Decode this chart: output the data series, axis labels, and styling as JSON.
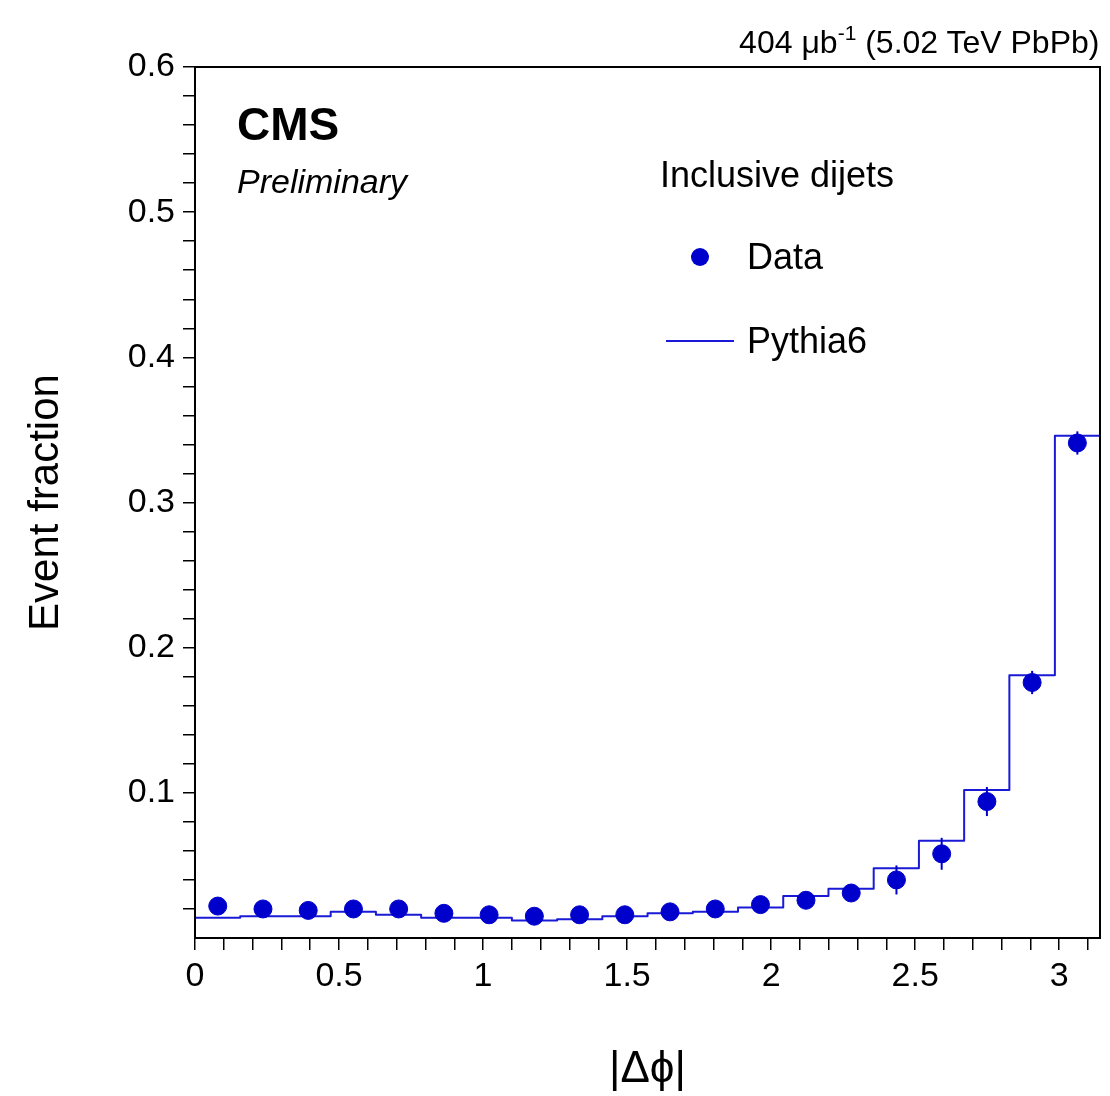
{
  "chart_data": {
    "type": "scatter",
    "title": "404 μb$^{-1}$ (5.02 TeV PbPb)",
    "xlabel": "|Δϕ|",
    "ylabel": "Event fraction",
    "legend_title": "Inclusive dijets",
    "annotations": [
      "CMS",
      "Preliminary"
    ],
    "xlim": [
      0,
      3.1416
    ],
    "ylim": [
      0,
      0.6
    ],
    "xticks": [
      0,
      {
        "value": 0.1,
        "label": null
      },
      {
        "value": 0.2,
        "label": null
      },
      {
        "value": 0.3,
        "label": null
      },
      {
        "value": 0.4,
        "label": null
      },
      0.5,
      {
        "value": 0.6,
        "label": null
      },
      {
        "value": 0.7,
        "label": null
      },
      {
        "value": 0.8,
        "label": null
      },
      {
        "value": 0.9,
        "label": null
      },
      1,
      {
        "value": 1.1,
        "label": null
      },
      {
        "value": 1.2,
        "label": null
      },
      {
        "value": 1.3,
        "label": null
      },
      {
        "value": 1.4,
        "label": null
      },
      1.5,
      {
        "value": 1.6,
        "label": null
      },
      {
        "value": 1.7,
        "label": null
      },
      {
        "value": 1.8,
        "label": null
      },
      {
        "value": 1.9,
        "label": null
      },
      2,
      {
        "value": 2.1,
        "label": null
      },
      {
        "value": 2.2,
        "label": null
      },
      {
        "value": 2.3,
        "label": null
      },
      {
        "value": 2.4,
        "label": null
      },
      2.5,
      {
        "value": 2.6,
        "label": null
      },
      {
        "value": 2.7,
        "label": null
      },
      {
        "value": 2.8,
        "label": null
      },
      {
        "value": 2.9,
        "label": null
      },
      3,
      {
        "value": 3.1,
        "label": null
      }
    ],
    "yticks": [
      {
        "value": 0.02,
        "label": null
      },
      {
        "value": 0.04,
        "label": null
      },
      {
        "value": 0.06,
        "label": null
      },
      {
        "value": 0.08,
        "label": null
      },
      0.1,
      {
        "value": 0.12,
        "label": null
      },
      {
        "value": 0.14,
        "label": null
      },
      {
        "value": 0.16,
        "label": null
      },
      {
        "value": 0.18,
        "label": null
      },
      0.2,
      {
        "value": 0.22,
        "label": null
      },
      {
        "value": 0.24,
        "label": null
      },
      {
        "value": 0.26,
        "label": null
      },
      {
        "value": 0.28,
        "label": null
      },
      0.3,
      {
        "value": 0.32,
        "label": null
      },
      {
        "value": 0.34,
        "label": null
      },
      {
        "value": 0.36,
        "label": null
      },
      {
        "value": 0.38,
        "label": null
      },
      0.4,
      {
        "value": 0.42,
        "label": null
      },
      {
        "value": 0.44,
        "label": null
      },
      {
        "value": 0.46,
        "label": null
      },
      {
        "value": 0.48,
        "label": null
      },
      0.5,
      {
        "value": 0.52,
        "label": null
      },
      {
        "value": 0.54,
        "label": null
      },
      {
        "value": 0.56,
        "label": null
      },
      {
        "value": 0.58,
        "label": null
      },
      0.6
    ],
    "grid": false,
    "legend": "top right",
    "series": [
      {
        "name": "Data",
        "marker": "circle",
        "color": "#0000cc",
        "x": [
          0.079,
          0.236,
          0.393,
          0.55,
          0.707,
          0.864,
          1.021,
          1.178,
          1.335,
          1.492,
          1.649,
          1.806,
          1.963,
          2.121,
          2.278,
          2.435,
          2.592,
          2.749,
          2.906,
          3.063
        ],
        "values": [
          0.022,
          0.02,
          0.019,
          0.02,
          0.02,
          0.017,
          0.016,
          0.015,
          0.016,
          0.016,
          0.018,
          0.02,
          0.023,
          0.026,
          0.031,
          0.04,
          0.058,
          0.094,
          0.176,
          0.341
        ],
        "errors": [
          null,
          null,
          null,
          null,
          null,
          null,
          null,
          null,
          null,
          null,
          null,
          null,
          null,
          null,
          null,
          0.01,
          0.011,
          0.01,
          0.008,
          0.008
        ]
      },
      {
        "name": "Pythia6",
        "type": "histogram",
        "color": "#1a1ad6",
        "bins": [
          0,
          0.157,
          0.314,
          0.471,
          0.628,
          0.785,
          0.942,
          1.1,
          1.257,
          1.414,
          1.571,
          1.728,
          1.885,
          2.042,
          2.199,
          2.356,
          2.513,
          2.67,
          2.827,
          2.985,
          3.1416
        ],
        "values": [
          0.014,
          0.015,
          0.015,
          0.018,
          0.016,
          0.014,
          0.014,
          0.012,
          0.013,
          0.015,
          0.017,
          0.018,
          0.021,
          0.029,
          0.034,
          0.048,
          0.067,
          0.102,
          0.181,
          0.346
        ]
      }
    ]
  }
}
